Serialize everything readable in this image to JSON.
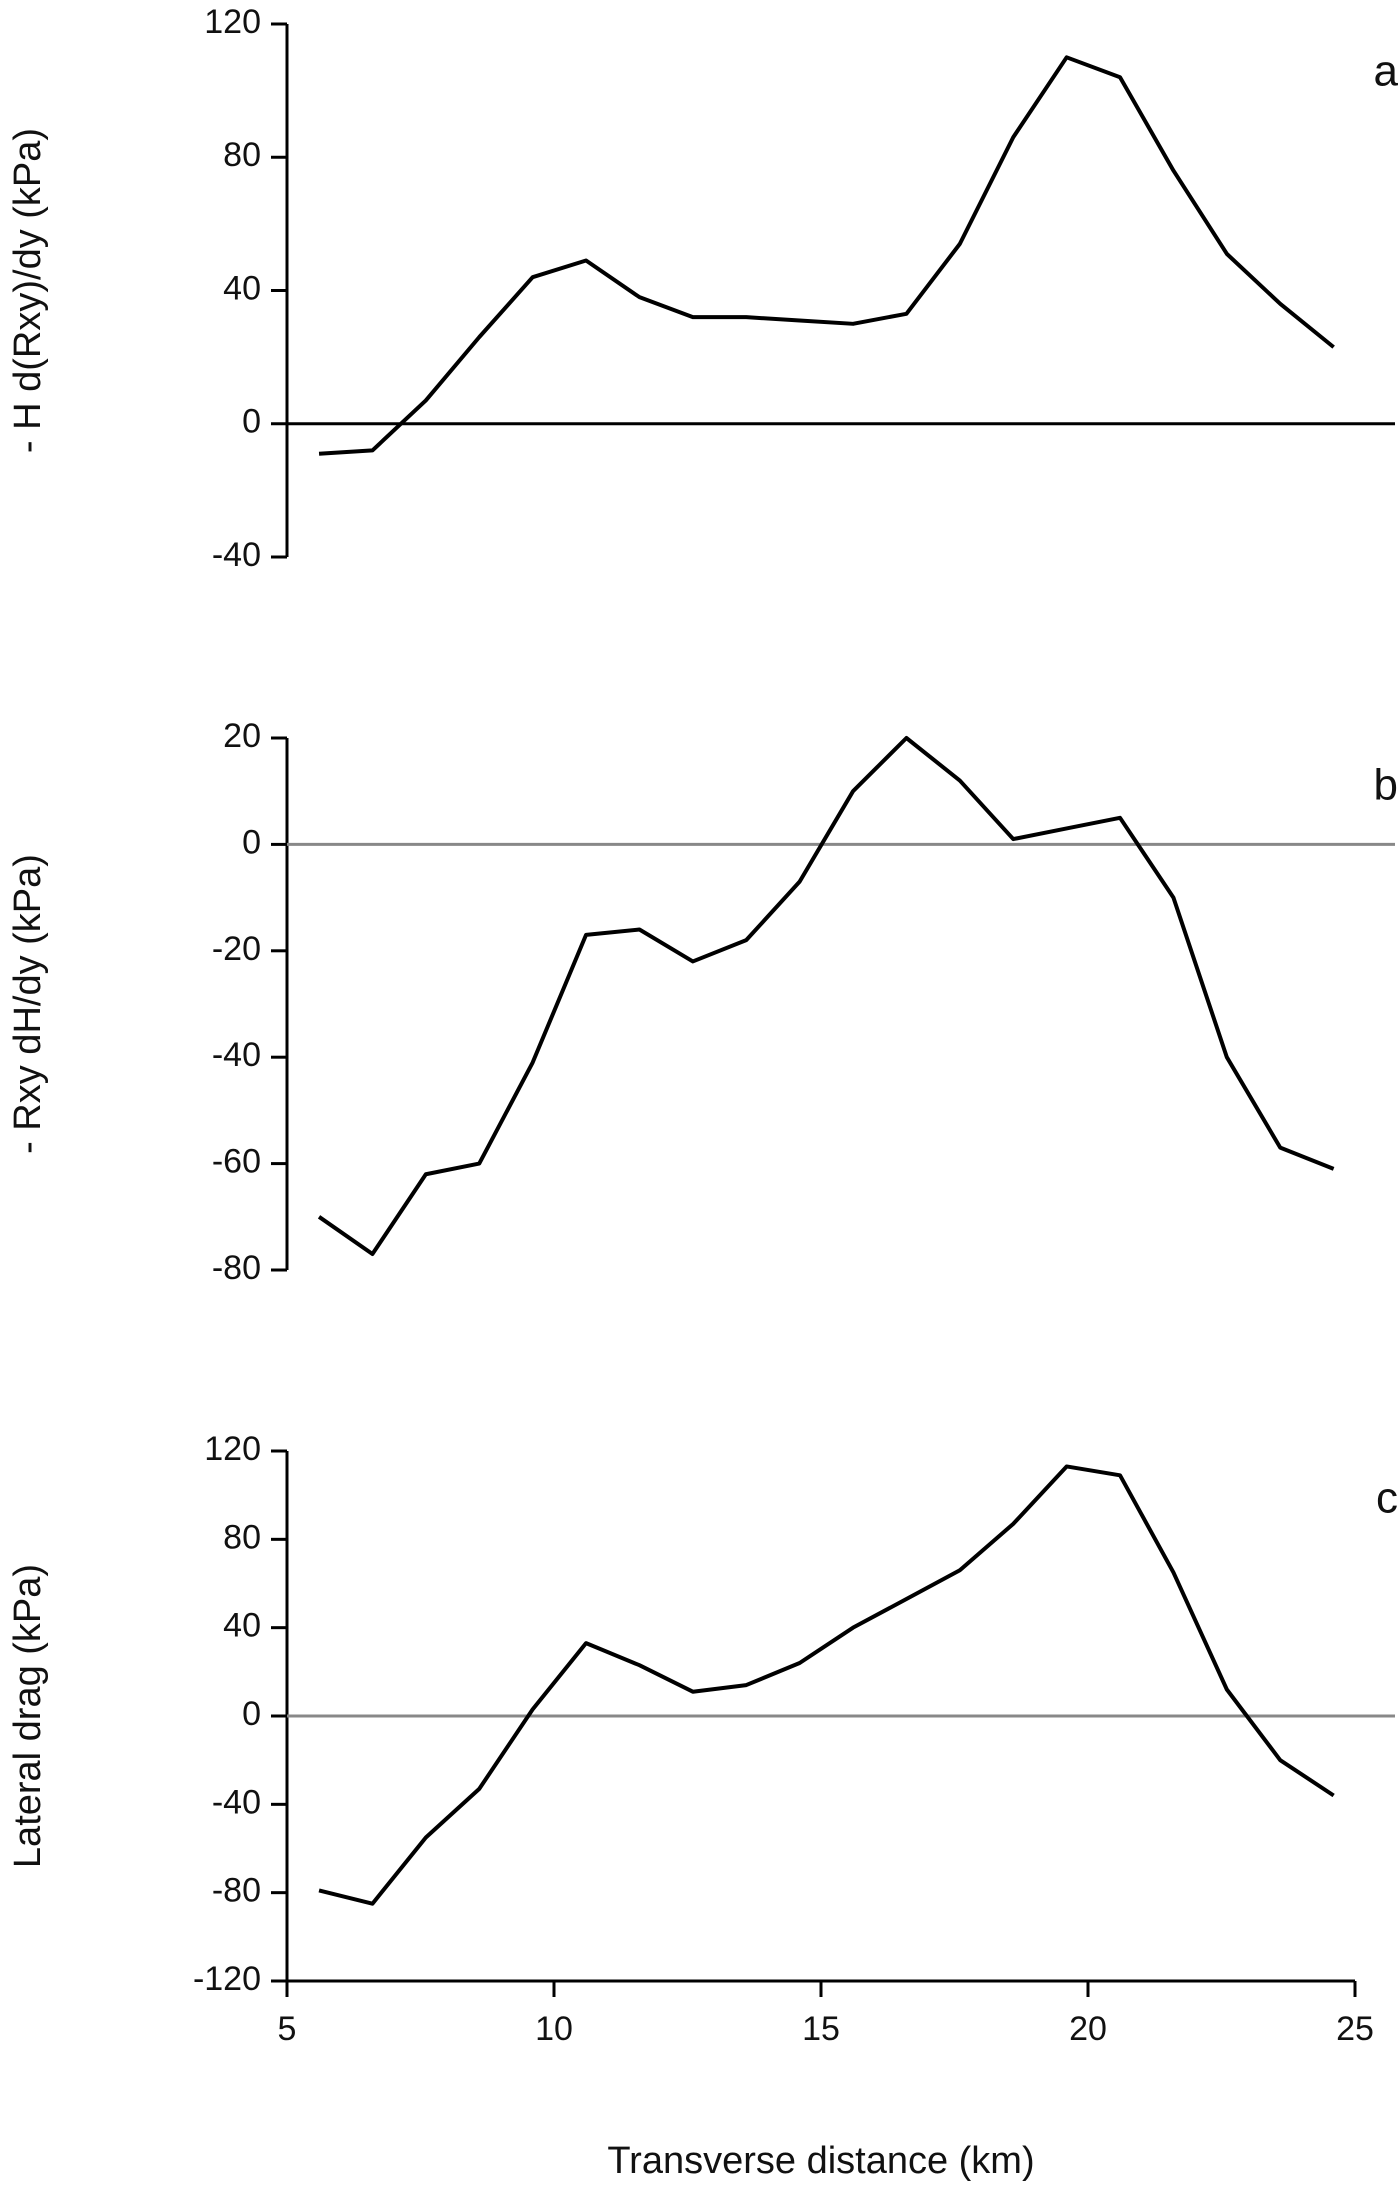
{
  "chart_data": [
    {
      "type": "line",
      "panel_label": "a",
      "y_label": "- H d(Rxy)/dy  (kPa)",
      "color": "#000000",
      "zero_line": "#000000",
      "x": [
        5.6,
        6.6,
        7.6,
        8.6,
        9.6,
        10.6,
        11.6,
        12.6,
        13.6,
        14.6,
        15.6,
        16.6,
        17.6,
        18.6,
        19.6,
        20.6,
        21.6,
        22.6,
        23.6,
        24.6
      ],
      "values": [
        -9,
        -8,
        7,
        26,
        44,
        49,
        38,
        32,
        32,
        31,
        30,
        33,
        54,
        86,
        110,
        104,
        76,
        51,
        36,
        23
      ],
      "xlim": [
        5,
        25
      ],
      "ylim": [
        -40,
        120
      ],
      "yticks": [
        -40,
        0,
        40,
        80,
        120
      ]
    },
    {
      "type": "line",
      "panel_label": "b",
      "y_label": "- Rxy dH/dy  (kPa)",
      "color": "#000000",
      "zero_line": "#888888",
      "x": [
        5.6,
        6.6,
        7.6,
        8.6,
        9.6,
        10.6,
        11.6,
        12.6,
        13.6,
        14.6,
        15.6,
        16.6,
        17.6,
        18.6,
        19.6,
        20.6,
        21.6,
        22.6,
        23.6,
        24.6
      ],
      "values": [
        -70,
        -77,
        -62,
        -60,
        -41,
        -17,
        -16,
        -22,
        -18,
        -7,
        10,
        20,
        12,
        1,
        3,
        5,
        -10,
        -40,
        -57,
        -61
      ],
      "xlim": [
        5,
        25
      ],
      "ylim": [
        -80,
        20
      ],
      "yticks": [
        -80,
        -60,
        -40,
        -20,
        0,
        20
      ]
    },
    {
      "type": "line",
      "panel_label": "c",
      "y_label": "Lateral drag  (kPa)",
      "x_label": "Transverse distance  (km)",
      "color": "#000000",
      "zero_line": "#888888",
      "x": [
        5.6,
        6.6,
        7.6,
        8.6,
        9.6,
        10.6,
        11.6,
        12.6,
        13.6,
        14.6,
        15.6,
        16.6,
        17.6,
        18.6,
        19.6,
        20.6,
        21.6,
        22.6,
        23.6,
        24.6
      ],
      "values": [
        -79,
        -85,
        -55,
        -33,
        3,
        33,
        23,
        11,
        14,
        24,
        40,
        53,
        66,
        87,
        113,
        109,
        65,
        12,
        -20,
        -36
      ],
      "xlim": [
        5,
        25
      ],
      "xticks": [
        5,
        10,
        15,
        20,
        25
      ],
      "ylim": [
        -120,
        120
      ],
      "yticks": [
        -120,
        -80,
        -40,
        0,
        40,
        80,
        120
      ]
    }
  ]
}
